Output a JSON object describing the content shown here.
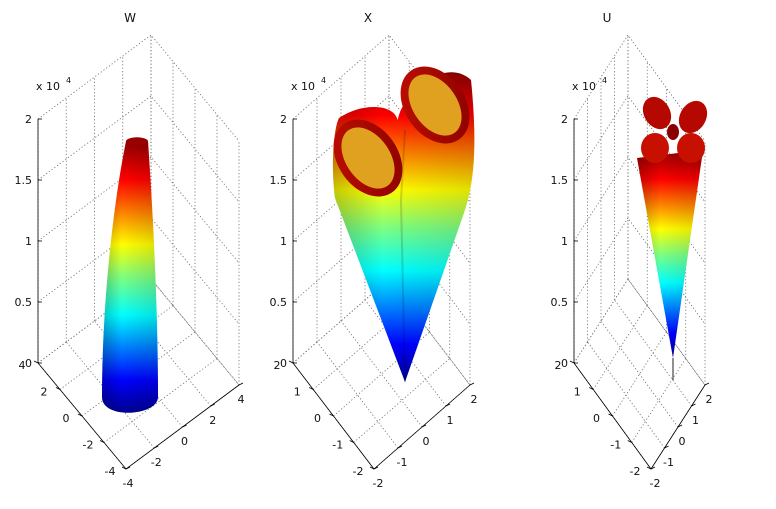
{
  "chart_data": [
    {
      "type": "surface",
      "title": "W",
      "z_multiplier": "x 10",
      "z_exponent": "4",
      "z_ticks": [
        0,
        0.5,
        1,
        1.5,
        2
      ],
      "z_tick_labels": [
        "0",
        "0.5",
        "1",
        "1.5",
        "2"
      ],
      "x_ticks": [
        -4,
        -2,
        0,
        2,
        4
      ],
      "y_ticks": [
        -4,
        -2,
        0,
        2,
        4
      ],
      "xlim": [
        -4,
        4
      ],
      "ylim": [
        -4,
        4
      ],
      "zlim": [
        0,
        2
      ],
      "shape": "omnidirectional-column",
      "top_value": 1.85,
      "colormap": "jet",
      "grid": true
    },
    {
      "type": "surface",
      "title": "X",
      "z_multiplier": "x 10",
      "z_exponent": "4",
      "z_ticks": [
        0,
        0.5,
        1,
        1.5,
        2
      ],
      "z_tick_labels": [
        "0",
        "0.5",
        "1",
        "1.5",
        "2"
      ],
      "x_ticks": [
        -2,
        -1,
        0,
        1,
        2
      ],
      "y_ticks": [
        -2,
        -1,
        0,
        1,
        2
      ],
      "xlim": [
        -2,
        2
      ],
      "ylim": [
        -2,
        2
      ],
      "zlim": [
        0,
        2
      ],
      "shape": "two-lobe",
      "top_value": 2.0,
      "colormap": "jet",
      "grid": true
    },
    {
      "type": "surface",
      "title": "U",
      "z_multiplier": "x 10",
      "z_exponent": "4",
      "z_ticks": [
        0,
        0.5,
        1,
        1.5,
        2
      ],
      "z_tick_labels": [
        "0",
        "0.5",
        "1",
        "1.5",
        "2"
      ],
      "x_ticks": [
        -2,
        -1,
        0,
        1,
        2
      ],
      "y_ticks": [
        -2,
        -1,
        0,
        1,
        2
      ],
      "xlim": [
        -2,
        2
      ],
      "ylim": [
        -2,
        2
      ],
      "zlim": [
        0,
        2
      ],
      "shape": "four-lobe",
      "top_value": 1.9,
      "colormap": "jet",
      "grid": true
    }
  ]
}
